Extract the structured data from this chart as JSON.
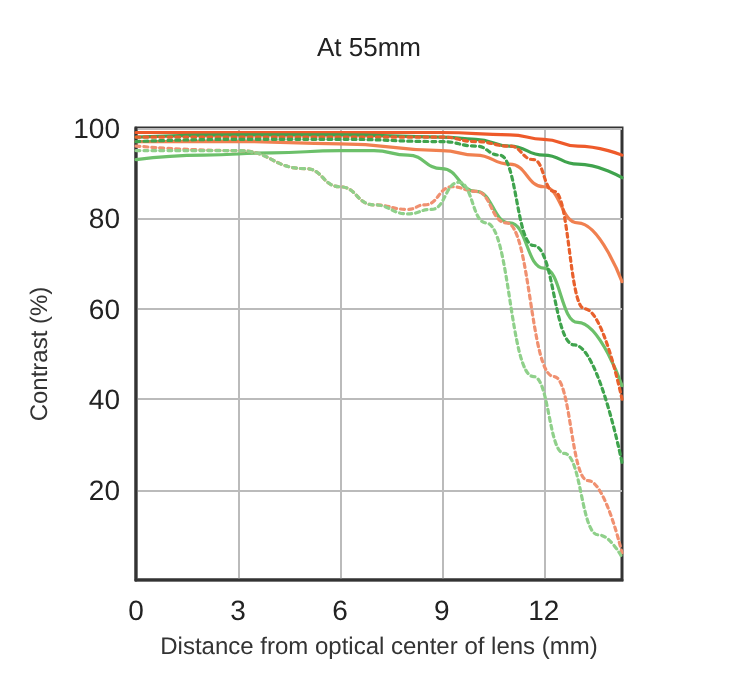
{
  "chart_data": {
    "type": "line",
    "title": "At 55mm",
    "xlabel": "Distance from optical center of lens (mm)",
    "ylabel": "Contrast (%)",
    "xlim": [
      0,
      14.3
    ],
    "xticks": [
      0,
      3,
      6,
      9,
      12
    ],
    "ylim": [
      0,
      100
    ],
    "yticks": [
      {
        "value": 0,
        "label": null
      },
      20,
      40,
      60,
      80,
      100
    ],
    "grid": true,
    "marker": "none",
    "series": [
      {
        "color": "#ee5a2a",
        "line_style": "solid",
        "x": [
          0,
          3,
          6,
          9,
          11,
          12,
          13,
          14.3
        ],
        "values": [
          99,
          99,
          99,
          99,
          98.5,
          97.5,
          96,
          94
        ]
      },
      {
        "color": "#3fa34d",
        "line_style": "solid",
        "x": [
          0,
          3,
          6,
          9,
          10,
          11,
          12,
          13,
          14.3
        ],
        "values": [
          98,
          98.5,
          98.5,
          98,
          97.5,
          96,
          94,
          92,
          89
        ]
      },
      {
        "color": "#f08050",
        "line_style": "solid",
        "x": [
          0,
          3,
          6,
          9,
          10,
          11,
          12,
          13,
          14.3
        ],
        "values": [
          97,
          97,
          96.5,
          95,
          94,
          92,
          87,
          79,
          66
        ]
      },
      {
        "color": "#6cc06a",
        "line_style": "solid",
        "x": [
          0,
          2,
          4,
          6,
          7,
          8,
          9,
          10,
          11,
          12,
          13,
          14.3
        ],
        "values": [
          93,
          94,
          94.5,
          95,
          95,
          94,
          91,
          86,
          79,
          69,
          57,
          43
        ]
      },
      {
        "color": "#e8602c",
        "line_style": "dotted",
        "x": [
          0,
          3,
          6,
          9,
          10,
          11,
          11.7,
          12.3,
          13.2,
          14.3
        ],
        "values": [
          98,
          98,
          98,
          98,
          97,
          96,
          93,
          86,
          60,
          40
        ]
      },
      {
        "color": "#3fa34d",
        "line_style": "dotted",
        "x": [
          0,
          3,
          6,
          9,
          10,
          10.7,
          11.7,
          12.9,
          14.3
        ],
        "values": [
          97,
          97.5,
          97.5,
          97,
          96,
          94,
          74,
          52,
          26
        ]
      },
      {
        "color": "#f09070",
        "line_style": "dotted",
        "x": [
          0,
          3,
          5,
          6,
          7,
          8,
          8.5,
          9.3,
          10,
          10.9,
          12.3,
          13.3,
          14.3
        ],
        "values": [
          96,
          95,
          91,
          87,
          83,
          82,
          83,
          87,
          86,
          79,
          45,
          22,
          6
        ]
      },
      {
        "color": "#8fd08a",
        "line_style": "dotted",
        "x": [
          0,
          3,
          5,
          6,
          7,
          8,
          8.7,
          9.5,
          10.3,
          11.7,
          12.6,
          13.6,
          14.3
        ],
        "values": [
          95,
          95,
          91,
          87,
          83,
          81,
          82,
          88,
          79,
          45,
          28,
          10,
          5
        ]
      }
    ]
  }
}
